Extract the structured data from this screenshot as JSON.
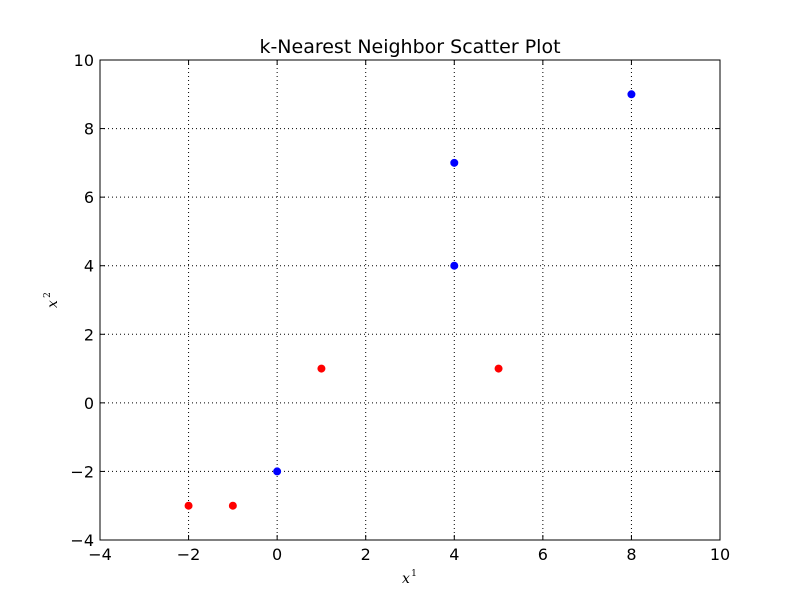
{
  "chart_data": {
    "type": "scatter",
    "title": "k-Nearest Neighbor Scatter Plot",
    "xlabel": {
      "base": "x",
      "sup": "1"
    },
    "ylabel": {
      "base": "x",
      "sup": "2"
    },
    "xlim": [
      -4,
      10
    ],
    "ylim": [
      -4,
      10
    ],
    "xticks": [
      -4,
      -2,
      0,
      2,
      4,
      6,
      8,
      10
    ],
    "yticks": [
      -4,
      -2,
      0,
      2,
      4,
      6,
      8,
      10
    ],
    "xtick_labels": [
      "−4",
      "−2",
      "0",
      "2",
      "4",
      "6",
      "8",
      "10"
    ],
    "ytick_labels": [
      "−4",
      "−2",
      "0",
      "2",
      "4",
      "6",
      "8",
      "10"
    ],
    "grid": true,
    "series": [
      {
        "color": "#0000ff",
        "points": [
          [
            0,
            -2
          ],
          [
            4,
            4
          ],
          [
            4,
            7
          ],
          [
            8,
            9
          ]
        ]
      },
      {
        "color": "#ff0000",
        "points": [
          [
            -2,
            -3
          ],
          [
            -1,
            -3
          ],
          [
            1,
            1
          ],
          [
            5,
            1
          ]
        ]
      }
    ]
  }
}
